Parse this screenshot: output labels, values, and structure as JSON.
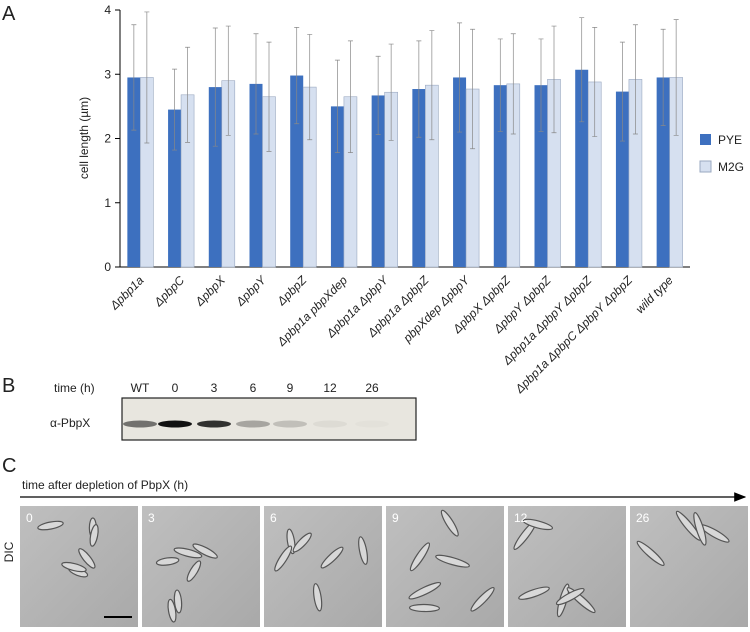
{
  "panel_labels": [
    "A",
    "B",
    "C"
  ],
  "chart_data": {
    "type": "bar",
    "y_label": "cell length (µm)",
    "categories": [
      "Δpbp1a",
      "ΔpbpC",
      "ΔpbpX",
      "ΔpbpY",
      "ΔpbpZ",
      "Δpbp1a pbpXdep",
      "Δpbp1a ΔpbpY",
      "Δpbp1a ΔpbpZ",
      "pbpXdep ΔpbpY",
      "ΔpbpX ΔpbpZ",
      "ΔpbpY ΔpbpZ",
      "Δpbp1a ΔpbpY ΔpbpZ",
      "Δpbp1a ΔpbpC ΔpbpY ΔpbpZ",
      "wild type"
    ],
    "series": [
      {
        "name": "PYE",
        "color": "#3d70bf",
        "values": [
          2.95,
          2.45,
          2.8,
          2.85,
          2.98,
          2.5,
          2.67,
          2.77,
          2.95,
          2.83,
          2.83,
          3.07,
          2.73,
          2.95
        ],
        "errors": [
          0.82,
          0.63,
          0.92,
          0.78,
          0.75,
          0.72,
          0.61,
          0.75,
          0.85,
          0.72,
          0.72,
          0.81,
          0.77,
          0.75
        ]
      },
      {
        "name": "M2G",
        "color": "#d6e0f0",
        "values": [
          2.95,
          2.68,
          2.9,
          2.65,
          2.8,
          2.65,
          2.72,
          2.83,
          2.77,
          2.85,
          2.92,
          2.88,
          2.92,
          2.95
        ],
        "errors": [
          1.02,
          0.74,
          0.85,
          0.85,
          0.82,
          0.87,
          0.75,
          0.85,
          0.93,
          0.78,
          0.83,
          0.85,
          0.85,
          0.9
        ]
      }
    ],
    "ylim": [
      0,
      4
    ],
    "yticks": [
      0,
      1,
      2,
      3,
      4
    ],
    "legend": "right"
  },
  "blot": {
    "time_label": "time (h)",
    "lanes": [
      "WT",
      "0",
      "3",
      "6",
      "9",
      "12",
      "26"
    ],
    "antibody": "α-PbpX"
  },
  "microscopy": {
    "axis_label": "time after depletion of PbpX (h)",
    "channel": "DIC",
    "frames": [
      "0",
      "3",
      "6",
      "9",
      "12",
      "26"
    ]
  }
}
